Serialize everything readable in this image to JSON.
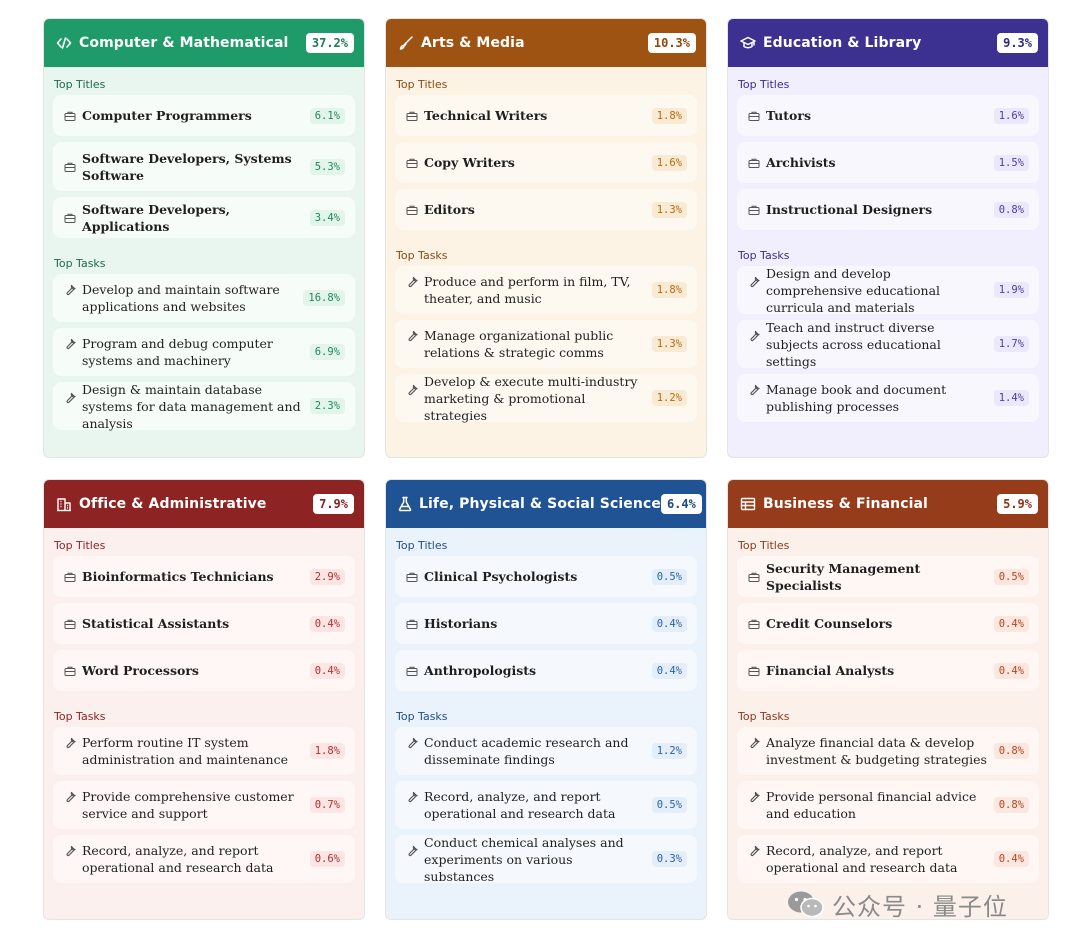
{
  "labels": {
    "top_titles": "Top Titles",
    "top_tasks": "Top Tasks"
  },
  "cards": [
    {
      "title": "Computer & Mathematical",
      "percent": "37.2%",
      "icon": "code-icon",
      "theme_color": "#1f9a69",
      "titles": [
        {
          "label": "Computer Programmers",
          "percent": "6.1%"
        },
        {
          "label": "Software Developers, Systems Software",
          "percent": "5.3%"
        },
        {
          "label": "Software Developers, Applications",
          "percent": "3.4%"
        }
      ],
      "tasks": [
        {
          "label": "Develop and maintain software applications and websites",
          "percent": "16.8%"
        },
        {
          "label": "Program and debug computer systems and machinery",
          "percent": "6.9%"
        },
        {
          "label": "Design & maintain database systems for data management and analysis",
          "percent": "2.3%"
        }
      ]
    },
    {
      "title": "Arts & Media",
      "percent": "10.3%",
      "icon": "brush-icon",
      "theme_color": "#9e5312",
      "titles": [
        {
          "label": "Technical Writers",
          "percent": "1.8%"
        },
        {
          "label": "Copy Writers",
          "percent": "1.6%"
        },
        {
          "label": "Editors",
          "percent": "1.3%"
        }
      ],
      "tasks": [
        {
          "label": "Produce and perform in film, TV, theater, and music",
          "percent": "1.8%"
        },
        {
          "label": "Manage organizational public relations & strategic comms",
          "percent": "1.3%"
        },
        {
          "label": "Develop & execute multi-industry marketing & promotional strategies",
          "percent": "1.2%"
        }
      ]
    },
    {
      "title": "Education & Library",
      "percent": "9.3%",
      "icon": "graduation-cap-icon",
      "theme_color": "#3c3190",
      "titles": [
        {
          "label": "Tutors",
          "percent": "1.6%"
        },
        {
          "label": "Archivists",
          "percent": "1.5%"
        },
        {
          "label": "Instructional Designers",
          "percent": "0.8%"
        }
      ],
      "tasks": [
        {
          "label": "Design and develop comprehensive educational curricula and materials",
          "percent": "1.9%"
        },
        {
          "label": "Teach and instruct diverse subjects across educational settings",
          "percent": "1.7%"
        },
        {
          "label": "Manage book and document publishing processes",
          "percent": "1.4%"
        }
      ]
    },
    {
      "title": "Office & Administrative",
      "percent": "7.9%",
      "icon": "building-icon",
      "theme_color": "#8e2323",
      "titles": [
        {
          "label": "Bioinformatics Technicians",
          "percent": "2.9%"
        },
        {
          "label": "Statistical Assistants",
          "percent": "0.4%"
        },
        {
          "label": "Word Processors",
          "percent": "0.4%"
        }
      ],
      "tasks": [
        {
          "label": "Perform routine IT system administration and maintenance",
          "percent": "1.8%"
        },
        {
          "label": "Provide comprehensive customer service and support",
          "percent": "0.7%"
        },
        {
          "label": "Record, analyze, and report operational and research data",
          "percent": "0.6%"
        }
      ]
    },
    {
      "title": "Life, Physical & Social Science",
      "percent": "6.4%",
      "icon": "flask-icon",
      "theme_color": "#1f5394",
      "titles": [
        {
          "label": "Clinical Psychologists",
          "percent": "0.5%"
        },
        {
          "label": "Historians",
          "percent": "0.4%"
        },
        {
          "label": "Anthropologists",
          "percent": "0.4%"
        }
      ],
      "tasks": [
        {
          "label": "Conduct academic research and disseminate findings",
          "percent": "1.2%"
        },
        {
          "label": "Record, analyze, and report operational and research data",
          "percent": "0.5%"
        },
        {
          "label": "Conduct chemical analyses and experiments on various substances",
          "percent": "0.3%"
        }
      ]
    },
    {
      "title": "Business & Financial",
      "percent": "5.9%",
      "icon": "ledger-icon",
      "theme_color": "#963c1b",
      "titles": [
        {
          "label": "Security Management Specialists",
          "percent": "0.5%"
        },
        {
          "label": "Credit Counselors",
          "percent": "0.4%"
        },
        {
          "label": "Financial Analysts",
          "percent": "0.4%"
        }
      ],
      "tasks": [
        {
          "label": "Analyze financial data & develop investment & budgeting strategies",
          "percent": "0.8%"
        },
        {
          "label": "Provide personal financial advice and education",
          "percent": "0.8%"
        },
        {
          "label": "Record, analyze, and report operational and research data",
          "percent": "0.4%"
        }
      ]
    }
  ],
  "item_icons": {
    "title": "briefcase-icon",
    "task": "wrench-icon"
  },
  "watermark": {
    "text": "公众号 · 量子位",
    "icon": "wechat-icon"
  }
}
